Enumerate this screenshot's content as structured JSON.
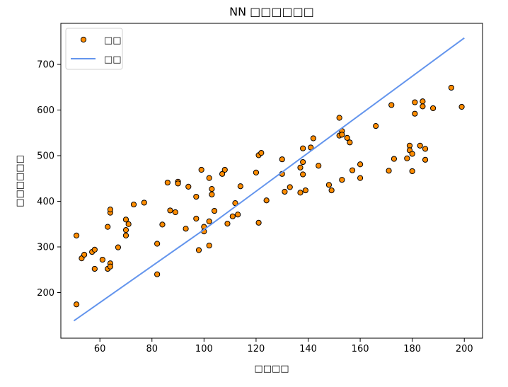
{
  "chart_data": {
    "type": "scatter",
    "title": "NN □□□□□□",
    "xlabel": "□□□□",
    "ylabel": "□□□□□□",
    "xlim": [
      45,
      207
    ],
    "ylim": [
      100,
      790
    ],
    "xticks": [
      60,
      80,
      100,
      120,
      140,
      160,
      180,
      200
    ],
    "yticks": [
      200,
      300,
      400,
      500,
      600,
      700
    ],
    "legend_position": "top-left",
    "grid": false,
    "series": [
      {
        "name": "□□",
        "kind": "scatter",
        "color": "#ff8c00",
        "edgecolor": "#000000",
        "points": [
          [
            51,
            325
          ],
          [
            51,
            174
          ],
          [
            53,
            275
          ],
          [
            54,
            283
          ],
          [
            57,
            289
          ],
          [
            58,
            252
          ],
          [
            58,
            294
          ],
          [
            61,
            272
          ],
          [
            63,
            252
          ],
          [
            63,
            344
          ],
          [
            64,
            375
          ],
          [
            64,
            382
          ],
          [
            64,
            264
          ],
          [
            64,
            257
          ],
          [
            67,
            299
          ],
          [
            70,
            360
          ],
          [
            70,
            337
          ],
          [
            70,
            325
          ],
          [
            71,
            350
          ],
          [
            73,
            393
          ],
          [
            77,
            397
          ],
          [
            82,
            307
          ],
          [
            82,
            240
          ],
          [
            84,
            349
          ],
          [
            86,
            441
          ],
          [
            87,
            380
          ],
          [
            89,
            376
          ],
          [
            90,
            443
          ],
          [
            90,
            439
          ],
          [
            93,
            340
          ],
          [
            94,
            432
          ],
          [
            97,
            410
          ],
          [
            97,
            362
          ],
          [
            98,
            293
          ],
          [
            99,
            469
          ],
          [
            100,
            344
          ],
          [
            100,
            334
          ],
          [
            102,
            451
          ],
          [
            102,
            356
          ],
          [
            102,
            303
          ],
          [
            103,
            427
          ],
          [
            103,
            415
          ],
          [
            104,
            379
          ],
          [
            107,
            460
          ],
          [
            108,
            469
          ],
          [
            109,
            351
          ],
          [
            111,
            367
          ],
          [
            112,
            396
          ],
          [
            113,
            371
          ],
          [
            114,
            433
          ],
          [
            120,
            463
          ],
          [
            121,
            353
          ],
          [
            121,
            501
          ],
          [
            122,
            506
          ],
          [
            124,
            402
          ],
          [
            130,
            492
          ],
          [
            130,
            460
          ],
          [
            131,
            421
          ],
          [
            133,
            431
          ],
          [
            137,
            419
          ],
          [
            137,
            474
          ],
          [
            138,
            486
          ],
          [
            138,
            516
          ],
          [
            138,
            459
          ],
          [
            139,
            424
          ],
          [
            141,
            518
          ],
          [
            142,
            538
          ],
          [
            144,
            478
          ],
          [
            148,
            436
          ],
          [
            149,
            424
          ],
          [
            152,
            583
          ],
          [
            152,
            544
          ],
          [
            153,
            554
          ],
          [
            153,
            546
          ],
          [
            153,
            447
          ],
          [
            155,
            539
          ],
          [
            156,
            529
          ],
          [
            157,
            468
          ],
          [
            160,
            481
          ],
          [
            160,
            451
          ],
          [
            166,
            565
          ],
          [
            171,
            467
          ],
          [
            172,
            611
          ],
          [
            173,
            493
          ],
          [
            178,
            494
          ],
          [
            179,
            522
          ],
          [
            179,
            512
          ],
          [
            180,
            466
          ],
          [
            180,
            504
          ],
          [
            181,
            617
          ],
          [
            181,
            592
          ],
          [
            183,
            522
          ],
          [
            184,
            619
          ],
          [
            184,
            608
          ],
          [
            185,
            515
          ],
          [
            185,
            491
          ],
          [
            188,
            604
          ],
          [
            195,
            649
          ],
          [
            199,
            607
          ]
        ]
      },
      {
        "name": "□□",
        "kind": "line",
        "color": "#6495ed",
        "points": [
          [
            50,
            138
          ],
          [
            100,
            338
          ],
          [
            150,
            548
          ],
          [
            200,
            758
          ]
        ]
      }
    ]
  }
}
